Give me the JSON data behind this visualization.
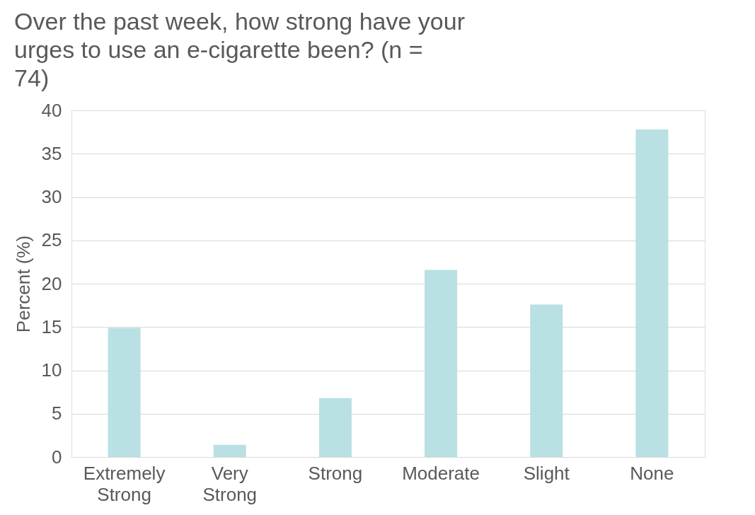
{
  "chart_data": {
    "type": "bar",
    "title": "Over the past week, how strong have your urges to use an e-cigarette been? (n = 74)",
    "ylabel": "Percent (%)",
    "categories": [
      "Extremely Strong",
      "Very Strong",
      "Strong",
      "Moderate",
      "Slight",
      "None"
    ],
    "values": [
      14.9,
      1.4,
      6.8,
      21.6,
      17.6,
      37.8
    ],
    "color": "#b9e0e2",
    "ylim": [
      0,
      40
    ],
    "yticks": [
      0,
      5,
      10,
      15,
      20,
      25,
      30,
      35,
      40
    ],
    "grid": "y"
  }
}
